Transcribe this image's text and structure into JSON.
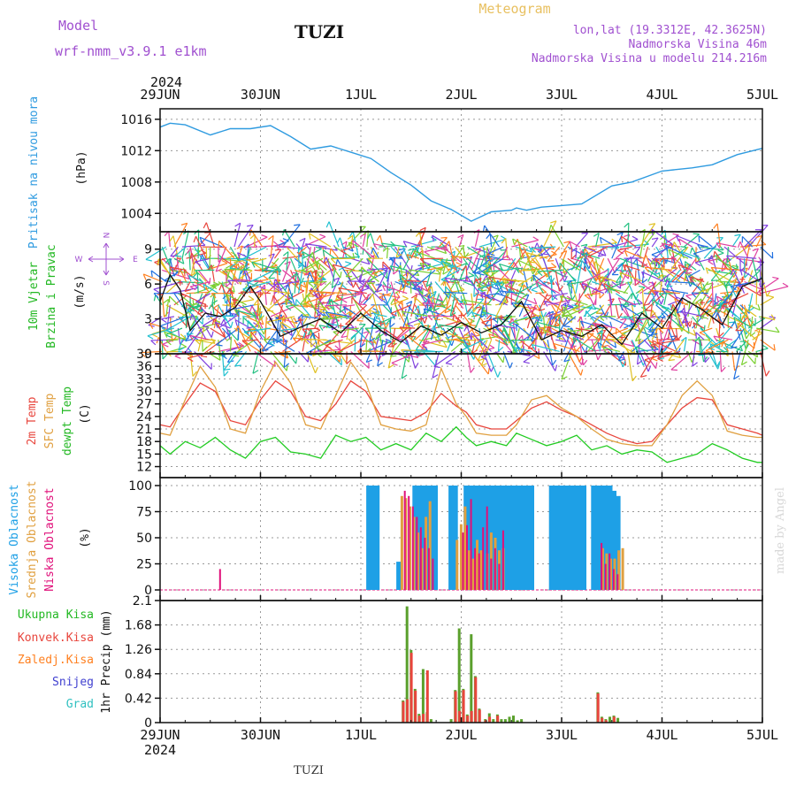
{
  "header": {
    "model_label": "Model",
    "model_name": "wrf-nmm_v3.9.1  e1km",
    "station": "TUZI",
    "chart_title": "Meteogram",
    "coords": "lon,lat (19.3312E, 42.3625N)",
    "elevation": "Nadmorska Visina 46m",
    "model_elevation": "Nadmorska Visina u modelu 214.216m"
  },
  "footer": {
    "station": "TUZI",
    "credit": "made by Angel"
  },
  "colors": {
    "pressure": "#2f9be0",
    "t2m": "#e8453c",
    "sfc": "#e0a040",
    "dewpt": "#22cc22",
    "high_cloud": "#1ea0e6",
    "mid_cloud": "#e0a040",
    "low_cloud": "#e0107a",
    "total_precip": "#5aa02c",
    "conv_precip": "#e8453c",
    "snow": "#4040d0",
    "frozen": "#ff8020",
    "hail": "#30c0c0"
  },
  "chart_data": {
    "x_axis": {
      "year": "2024",
      "ticks": [
        "29JUN",
        "30JUN",
        "1JUL",
        "2JUL",
        "3JUL",
        "4JUL",
        "5JUL"
      ]
    },
    "panels": [
      {
        "id": "pressure",
        "type": "line",
        "ylabel_series": "Pritisak na nivou mora",
        "unit": "(hPa)",
        "ylim": [
          1002,
          1017
        ],
        "yticks": [
          1004,
          1008,
          1012,
          1016
        ],
        "x_days": [
          0,
          0.1,
          0.25,
          0.5,
          0.7,
          0.9,
          1.1,
          1.3,
          1.5,
          1.7,
          1.9,
          2.1,
          2.3,
          2.5,
          2.7,
          2.9,
          3.1,
          3.3,
          3.5,
          3.55,
          3.65,
          3.8,
          4.0,
          4.2,
          4.5,
          4.7,
          5.0,
          5.3,
          5.5,
          5.75,
          6.0
        ],
        "values": [
          1015.0,
          1015.5,
          1015.3,
          1014.0,
          1014.8,
          1014.8,
          1015.2,
          1013.8,
          1012.2,
          1012.6,
          1011.8,
          1011.0,
          1009.2,
          1007.6,
          1005.6,
          1004.5,
          1003.0,
          1004.2,
          1004.4,
          1004.7,
          1004.4,
          1004.8,
          1005.0,
          1005.2,
          1007.5,
          1008.0,
          1009.4,
          1009.8,
          1010.2,
          1011.5,
          1012.3
        ]
      },
      {
        "id": "wind",
        "type": "line+barbs",
        "ylabel_series": "10m Vjetar",
        "ylabel_series2": "Brzina i Pravac",
        "unit": "(m/s)",
        "compass": {
          "n": "N",
          "s": "S",
          "w": "W",
          "e": "E"
        },
        "ylim": [
          0,
          10.5
        ],
        "yticks": [
          0,
          3,
          6,
          9
        ],
        "x_days": [
          0,
          0.1,
          0.2,
          0.3,
          0.45,
          0.6,
          0.75,
          0.9,
          1.0,
          1.2,
          1.4,
          1.6,
          1.8,
          2.0,
          2.2,
          2.4,
          2.6,
          2.8,
          3.0,
          3.2,
          3.4,
          3.6,
          3.8,
          4.0,
          4.2,
          4.4,
          4.6,
          4.8,
          5.0,
          5.2,
          5.4,
          5.6,
          5.8,
          6.0
        ],
        "values": [
          4.5,
          6.8,
          5.5,
          2.0,
          3.5,
          3.2,
          4.0,
          5.8,
          4.5,
          1.5,
          2.3,
          3.0,
          1.8,
          3.5,
          2.0,
          1.0,
          2.4,
          1.6,
          2.7,
          1.8,
          2.5,
          4.5,
          1.2,
          2.0,
          1.5,
          2.5,
          0.8,
          3.5,
          2.2,
          4.8,
          3.8,
          2.5,
          5.8,
          6.5
        ]
      },
      {
        "id": "temperature",
        "type": "line",
        "ylabel_series": [
          "2m Temp",
          "SFC Temp",
          "dewpt Temp"
        ],
        "unit": "(C)",
        "ylim": [
          10,
          39
        ],
        "yticks": [
          12,
          15,
          18,
          21,
          24,
          27,
          30,
          33,
          36,
          39
        ],
        "x_days": [
          0,
          0.1,
          0.25,
          0.4,
          0.55,
          0.7,
          0.85,
          1.0,
          1.15,
          1.3,
          1.45,
          1.6,
          1.75,
          1.9,
          2.05,
          2.2,
          2.35,
          2.5,
          2.65,
          2.8,
          2.95,
          3.05,
          3.15,
          3.3,
          3.45,
          3.55,
          3.7,
          3.85,
          4.0,
          4.15,
          4.3,
          4.45,
          4.6,
          4.75,
          4.9,
          5.05,
          5.2,
          5.35,
          5.5,
          5.65,
          5.8,
          5.95,
          6.0
        ],
        "series": [
          {
            "name": "2m Temp",
            "values": [
              22,
              21.5,
              27,
              32,
              30,
              23,
              22,
              28,
              32.5,
              30,
              24,
              23,
              27,
              32.5,
              30,
              24,
              23.5,
              23,
              25,
              29.5,
              26.5,
              25,
              22,
              21,
              21,
              23,
              26,
              27.5,
              25.5,
              24,
              22,
              20,
              18.5,
              17.5,
              18,
              22,
              26,
              28.5,
              28,
              22,
              21,
              20,
              19.5
            ]
          },
          {
            "name": "SFC Temp",
            "values": [
              20,
              19.5,
              28,
              36,
              31,
              21,
              20,
              30,
              37,
              32,
              22,
              21,
              29,
              37,
              32,
              22,
              21,
              20.5,
              22,
              35.5,
              27,
              24,
              20,
              19.5,
              19.5,
              22,
              28,
              29,
              26,
              24,
              21,
              18.5,
              17.5,
              17,
              17,
              22,
              29,
              32.5,
              29,
              20.5,
              19.5,
              19,
              19
            ]
          },
          {
            "name": "dewpt Temp",
            "values": [
              17,
              15,
              18,
              16.5,
              19,
              16,
              14,
              18,
              19,
              15.5,
              15,
              14,
              19.5,
              18,
              19,
              16,
              17.5,
              16,
              20,
              18,
              21.5,
              19,
              17,
              18,
              17,
              20,
              18.5,
              17,
              18,
              19.5,
              16,
              17,
              15,
              16,
              15.5,
              13,
              14,
              15,
              17.5,
              16,
              14,
              13,
              13
            ]
          }
        ]
      },
      {
        "id": "clouds",
        "type": "bar",
        "ylabel_series": [
          "Visoka Oblacnost",
          "Srednja Oblacnost",
          "Niska Oblacnost"
        ],
        "unit": "(%)",
        "ylim": [
          0,
          100
        ],
        "yticks": [
          0,
          25,
          50,
          75,
          100
        ],
        "series": [
          {
            "name": "Visoka Oblacnost",
            "x_days": [
              2.08,
              2.12,
              2.16,
              2.38,
              2.54,
              2.58,
              2.62,
              2.66,
              2.7,
              2.74,
              2.9,
              2.94,
              3.05,
              3.09,
              3.13,
              3.17,
              3.21,
              3.25,
              3.29,
              3.33,
              3.37,
              3.41,
              3.45,
              3.49,
              3.53,
              3.57,
              3.61,
              3.65,
              3.7,
              3.9,
              3.94,
              3.98,
              4.02,
              4.06,
              4.1,
              4.14,
              4.18,
              4.22,
              4.32,
              4.36,
              4.4,
              4.44,
              4.48,
              4.52,
              4.56
            ],
            "values": [
              100,
              100,
              100,
              27,
              100,
              100,
              100,
              100,
              100,
              100,
              100,
              100,
              100,
              100,
              100,
              100,
              100,
              100,
              100,
              100,
              100,
              100,
              100,
              100,
              100,
              100,
              100,
              100,
              100,
              100,
              100,
              100,
              100,
              100,
              100,
              100,
              100,
              100,
              100,
              100,
              100,
              100,
              100,
              95,
              90
            ]
          },
          {
            "name": "Srednja Oblacnost",
            "x_days": [
              2.4,
              2.44,
              2.48,
              2.52,
              2.56,
              2.6,
              2.64,
              2.68,
              2.95,
              2.99,
              3.03,
              3.07,
              3.11,
              3.15,
              3.19,
              3.25,
              3.29,
              3.33,
              3.37,
              3.41,
              4.4,
              4.44,
              4.48,
              4.52,
              4.56,
              4.6
            ],
            "values": [
              90,
              88,
              80,
              70,
              55,
              40,
              70,
              85,
              48,
              63,
              80,
              38,
              30,
              48,
              38,
              35,
              55,
              50,
              38,
              40,
              40,
              35,
              30,
              30,
              38,
              40
            ]
          },
          {
            "name": "Niska Oblacnost",
            "x_days": [
              0.58,
              2.42,
              2.46,
              2.5,
              2.54,
              2.58,
              2.62,
              2.66,
              2.7,
              3.0,
              3.04,
              3.08,
              3.12,
              3.16,
              3.2,
              3.24,
              3.28,
              3.32,
              3.36,
              3.4,
              4.38,
              4.42,
              4.46,
              4.5,
              4.54
            ],
            "values": [
              20,
              95,
              90,
              80,
              70,
              60,
              50,
              40,
              30,
              55,
              62,
              87,
              40,
              35,
              60,
              80,
              30,
              40,
              25,
              57,
              45,
              25,
              35,
              20,
              15
            ]
          }
        ]
      },
      {
        "id": "precip",
        "type": "bar",
        "ylabel_series": [
          "Ukupna Kisa",
          "Konvek.Kisa",
          "Zaledj.Kisa",
          "Snijeg",
          "Grad"
        ],
        "unit": "1hr Precip (mm)",
        "ylim": [
          0,
          2.1
        ],
        "yticks": [
          0,
          0.42,
          0.84,
          1.26,
          1.68,
          2.1
        ],
        "series": [
          {
            "name": "Ukupna Kisa",
            "x_days": [
              2.42,
              2.46,
              2.5,
              2.54,
              2.58,
              2.62,
              2.66,
              2.7,
              2.9,
              2.94,
              2.98,
              3.02,
              3.06,
              3.1,
              3.14,
              3.18,
              3.24,
              3.28,
              3.32,
              3.36,
              3.4,
              3.44,
              3.48,
              3.52,
              3.56,
              3.6,
              4.36,
              4.4,
              4.44,
              4.48,
              4.52,
              4.56
            ],
            "values": [
              0.38,
              2.0,
              1.25,
              0.58,
              0.15,
              0.92,
              0.18,
              0.06,
              0.06,
              0.56,
              1.62,
              0.58,
              0.14,
              1.52,
              0.8,
              0.24,
              0.06,
              0.16,
              0.06,
              0.14,
              0.06,
              0.06,
              0.1,
              0.12,
              0.04,
              0.06,
              0.52,
              0.1,
              0.06,
              0.1,
              0.12,
              0.08
            ]
          },
          {
            "name": "Konvek.Kisa",
            "x_days": [
              2.41,
              2.45,
              2.49,
              2.53,
              2.57,
              2.61,
              2.65,
              2.93,
              2.97,
              3.01,
              3.05,
              3.09,
              3.13,
              3.17,
              3.23,
              3.27,
              3.35,
              4.35,
              4.39,
              4.43,
              4.51
            ],
            "values": [
              0.36,
              0.4,
              1.2,
              0.55,
              0.12,
              0.15,
              0.9,
              0.54,
              0.2,
              0.56,
              0.12,
              0.2,
              0.78,
              0.22,
              0.04,
              0.1,
              0.12,
              0.5,
              0.08,
              0.04,
              0.1
            ]
          }
        ]
      }
    ]
  }
}
